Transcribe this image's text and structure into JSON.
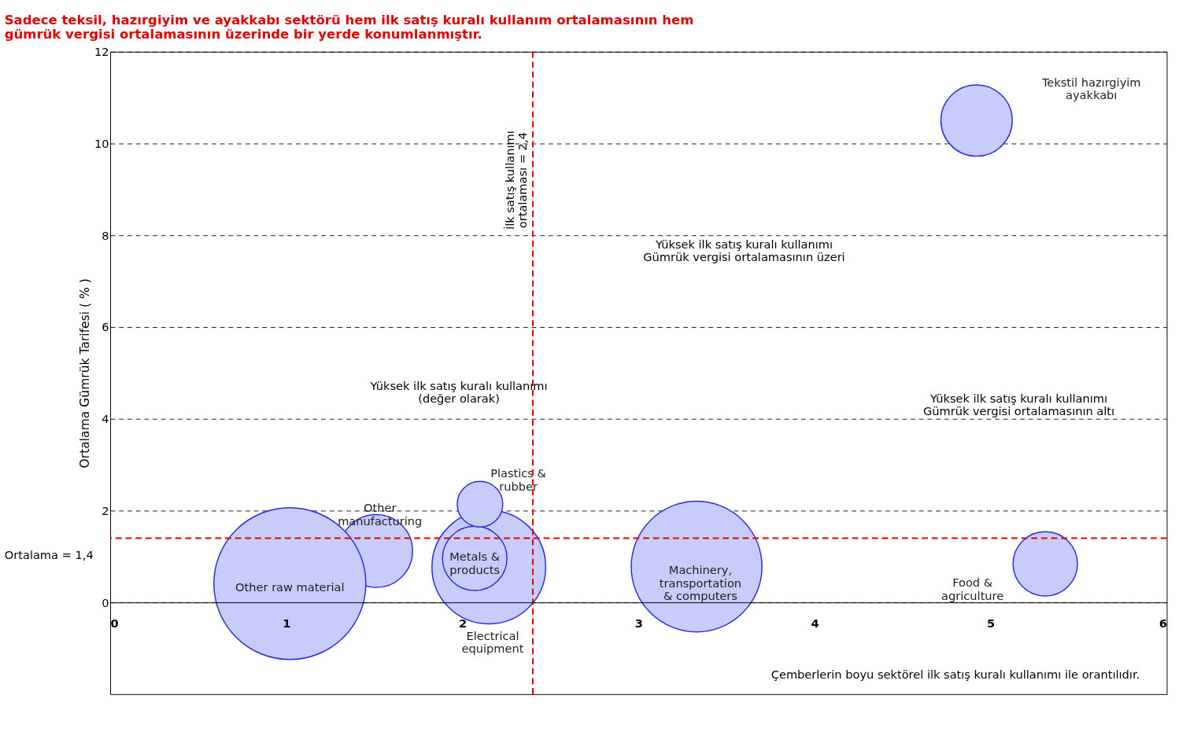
{
  "chart_data": {
    "type": "bubble",
    "title": "Sadece teksil, hazırgiyim ve ayakkabı sektörü hem ilk satış kuralı kullanım ortalamasının hem\ngümrük vergisi ortalamasının üzerinde bir yerde konumlanmıştır.",
    "ylabel": "Ortalama Gümrük Tarifesi ( % )",
    "xlim": [
      0,
      6
    ],
    "ylim": [
      -2,
      12
    ],
    "xticks": [
      0,
      1,
      2,
      3,
      4,
      5,
      6
    ],
    "yticks": [
      0,
      2,
      4,
      6,
      8,
      10,
      12
    ],
    "grid": "y",
    "legend": false,
    "series": [
      {
        "name": "Other\nmanufacturing",
        "color": "#c8ccfa",
        "x": [
          1.51
        ],
        "values": [
          1.12
        ],
        "sizes": [
          0.23
        ]
      },
      {
        "name": "Other raw material",
        "color": "#c8ccfa",
        "x": [
          1.02
        ],
        "values": [
          0.41
        ],
        "sizes": [
          1
        ]
      },
      {
        "name": "Electrical\nequipment",
        "color": "#c8ccfa",
        "x": [
          2.15
        ],
        "values": [
          0.77
        ],
        "sizes": [
          0.56
        ]
      },
      {
        "name": "Metals &\nproducts",
        "color": "#c8ccfa",
        "x": [
          2.07
        ],
        "values": [
          0.96
        ],
        "sizes": [
          0.18
        ]
      },
      {
        "name": "Plastics &\nrubber",
        "color": "#c8ccfa",
        "x": [
          2.1
        ],
        "values": [
          2.14
        ],
        "sizes": [
          0.09
        ]
      },
      {
        "name": "Machinery,\ntransportation\n& computers",
        "color": "#c8ccfa",
        "x": [
          3.33
        ],
        "values": [
          0.78
        ],
        "sizes": [
          0.74
        ]
      },
      {
        "name": "Food &\nagriculture",
        "color": "#c8ccfa",
        "x": [
          5.31
        ],
        "values": [
          0.84
        ],
        "sizes": [
          0.18
        ]
      },
      {
        "name": "Tekstil hazırgiyim\nayakkabı",
        "color": "#c8ccfa",
        "x": [
          4.92
        ],
        "values": [
          10.5
        ],
        "sizes": [
          0.22
        ]
      }
    ],
    "ref_lines": [
      {
        "axis": "x",
        "value": 2.4,
        "label": "İlk satış kullanımı\nortalaması = 2,4",
        "color": "#e00000",
        "line_style": "dashed"
      },
      {
        "axis": "y",
        "value": 1.4,
        "label": "Ortalama = 1,4",
        "color": "#e00000",
        "line_style": "dashed"
      }
    ],
    "annotations": [
      "Yüksek ilk satış kuralı kullanımı\nGümrük vergisi ortalamasının üzeri",
      "Yüksek ilk satış kuralı kullanımı\n(değer olarak)",
      "Yüksek ilk satış kuralı kullanımı\nGümrük vergisi ortalamasının altı",
      "Çemberlerin boyu sektörel ilk satış kuralı kullanımı ile orantılıdır."
    ]
  }
}
